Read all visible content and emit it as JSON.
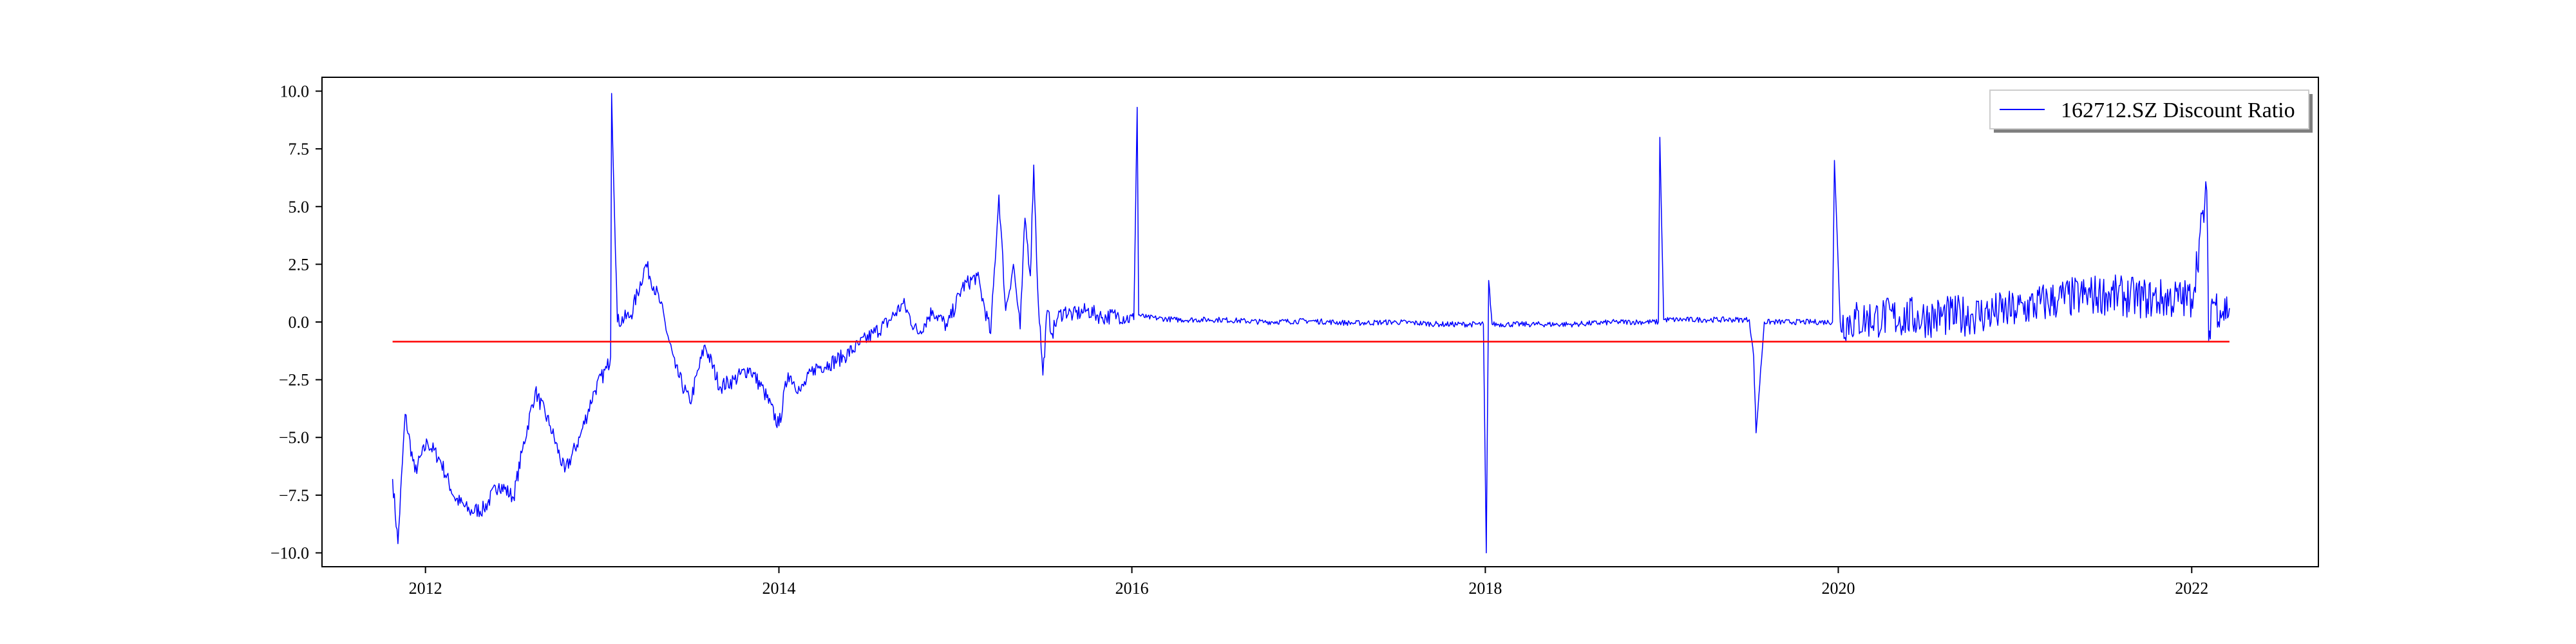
{
  "chart_data": {
    "type": "line",
    "title": "",
    "xlabel": "",
    "ylabel": "",
    "xlim": [
      "2011-06-01",
      "2022-09-20"
    ],
    "ylim": [
      -10.6,
      10.6
    ],
    "x_ticks": [
      "2012-01-01",
      "2014-01-01",
      "2016-01-01",
      "2018-01-01",
      "2020-01-01",
      "2022-01-01"
    ],
    "x_tick_labels": [
      "2012",
      "2014",
      "2016",
      "2018",
      "2020",
      "2022"
    ],
    "y_ticks": [
      10.0,
      7.5,
      5.0,
      2.5,
      0.0,
      -2.5,
      -5.0,
      -7.5,
      -10.0
    ],
    "y_tick_labels": [
      "10.0",
      "7.5",
      "5.0",
      "2.5",
      "0.0",
      "−2.5",
      "−5.0",
      "−7.5",
      "−10.0"
    ],
    "grid": false,
    "legend": {
      "placement": "top-right",
      "entries": [
        "162712.SZ Discount Ratio"
      ]
    },
    "series": [
      {
        "name": "162712.SZ Discount Ratio",
        "color": "#0000ff",
        "x": [
          "2011-10-25",
          "2011-11-05",
          "2011-11-20",
          "2011-12-10",
          "2012-01-05",
          "2012-02-01",
          "2012-03-01",
          "2012-04-01",
          "2012-05-01",
          "2012-06-01",
          "2012-07-01",
          "2012-07-20",
          "2012-08-15",
          "2012-09-15",
          "2012-10-15",
          "2012-11-15",
          "2012-12-15",
          "2013-01-10",
          "2013-01-18",
          "2013-01-20",
          "2013-02-01",
          "2013-03-01",
          "2013-04-01",
          "2013-05-01",
          "2013-06-01",
          "2013-07-01",
          "2013-08-01",
          "2013-09-01",
          "2013-10-01",
          "2013-11-01",
          "2013-12-01",
          "2014-01-01",
          "2014-01-20",
          "2014-02-15",
          "2014-03-15",
          "2014-04-15",
          "2014-05-15",
          "2014-06-15",
          "2014-07-15",
          "2014-08-15",
          "2014-09-15",
          "2014-10-15",
          "2014-11-15",
          "2014-12-15",
          "2015-01-15",
          "2015-02-15",
          "2015-03-15",
          "2015-04-01",
          "2015-04-15",
          "2015-05-01",
          "2015-05-15",
          "2015-05-25",
          "2015-06-05",
          "2015-06-12",
          "2015-06-20",
          "2015-07-01",
          "2015-07-10",
          "2015-07-20",
          "2015-08-01",
          "2015-08-15",
          "2015-09-01",
          "2015-10-01",
          "2015-11-01",
          "2015-12-01",
          "2016-01-05",
          "2016-01-12",
          "2016-01-15",
          "2016-02-01",
          "2016-04-01",
          "2016-07-01",
          "2016-10-01",
          "2017-01-01",
          "2017-04-01",
          "2017-07-01",
          "2017-10-01",
          "2017-12-28",
          "2018-01-03",
          "2018-01-08",
          "2018-01-15",
          "2018-04-01",
          "2018-07-01",
          "2018-10-01",
          "2018-12-25",
          "2018-12-28",
          "2019-01-05",
          "2019-04-01",
          "2019-07-01",
          "2019-07-10",
          "2019-07-15",
          "2019-08-01",
          "2019-10-01",
          "2019-12-20",
          "2019-12-24",
          "2020-01-05",
          "2020-04-01",
          "2020-07-01",
          "2020-10-01",
          "2021-01-01",
          "2021-04-01",
          "2021-07-01",
          "2021-10-01",
          "2022-01-01",
          "2022-02-01",
          "2022-02-05",
          "2022-02-12",
          "2022-03-01",
          "2022-03-20"
        ],
        "values": [
          -6.8,
          -9.6,
          -4.0,
          -6.5,
          -5.2,
          -6.0,
          -7.6,
          -8.2,
          -8.1,
          -7.0,
          -7.6,
          -5.5,
          -3.0,
          -4.5,
          -6.5,
          -5.0,
          -3.0,
          -2.0,
          -1.5,
          9.9,
          0.0,
          0.3,
          2.5,
          0.8,
          -2.0,
          -3.5,
          -1.0,
          -2.8,
          -2.5,
          -2.0,
          -3.0,
          -4.5,
          -2.2,
          -3.0,
          -2.0,
          -1.8,
          -1.5,
          -1.0,
          -0.5,
          0.0,
          0.8,
          -0.5,
          0.5,
          -0.2,
          1.5,
          2.0,
          -0.5,
          5.5,
          0.5,
          2.5,
          -0.3,
          4.5,
          2.0,
          6.8,
          1.5,
          -2.3,
          0.5,
          -0.5,
          0.2,
          0.5,
          0.3,
          0.5,
          0.2,
          0.3,
          0.1,
          9.3,
          0.3,
          0.2,
          0.1,
          0.1,
          0.0,
          0.05,
          -0.05,
          0.0,
          -0.1,
          -0.1,
          -10.0,
          1.8,
          -0.1,
          -0.1,
          -0.1,
          0.0,
          0.0,
          8.0,
          0.1,
          0.1,
          0.1,
          -1.5,
          -4.8,
          0.0,
          0.0,
          0.0,
          7.0,
          0.0,
          0.2,
          0.2,
          0.3,
          0.5,
          1.0,
          1.2,
          1.0,
          1.0,
          5.7,
          -0.8,
          1.0,
          0.5,
          0.6
        ]
      },
      {
        "name": "",
        "color": "#ff0000",
        "x": [
          "2011-10-25",
          "2022-03-20"
        ],
        "values": [
          -0.85,
          -0.85
        ]
      }
    ]
  }
}
